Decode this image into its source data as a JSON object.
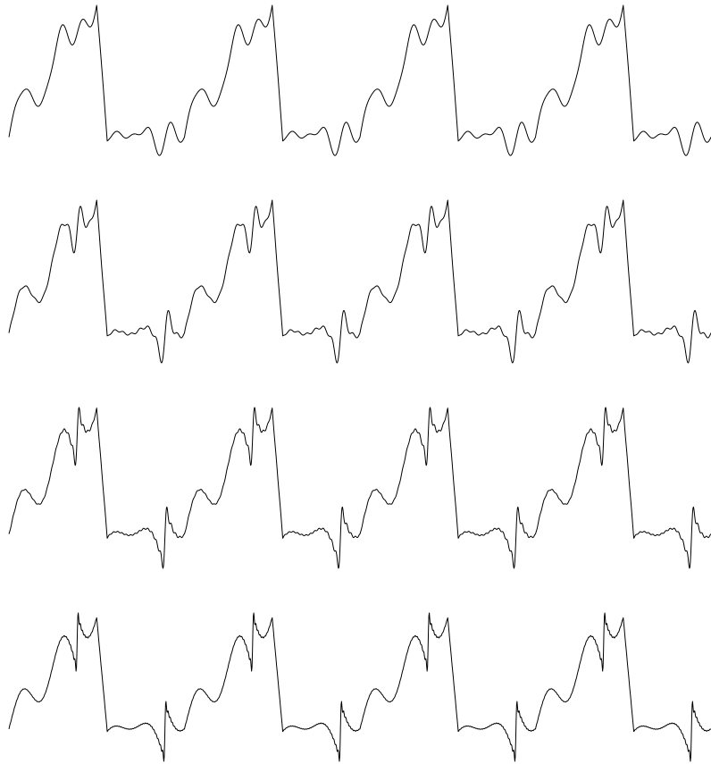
{
  "chart_data": {
    "type": "line",
    "title": "",
    "xlabel": "",
    "ylabel": "",
    "axes_visible": false,
    "grid": false,
    "legend": "none",
    "line_color": "#000000",
    "background": "#ffffff",
    "periods_shown": 4,
    "period_segments": [
      {
        "shape": "sine-harmonic",
        "span": [
          0,
          0.5
        ]
      },
      {
        "shape": "steep-drop",
        "span": [
          0.5,
          0.56
        ]
      },
      {
        "shape": "sine-harmonic",
        "span": [
          0.56,
          1.0
        ]
      }
    ],
    "series": [
      {
        "harmonics": 10,
        "ylim": [
          -1,
          1
        ]
      },
      {
        "harmonics": 20,
        "ylim": [
          -1,
          1
        ]
      },
      {
        "harmonics": 40,
        "ylim": [
          -1,
          1
        ]
      },
      {
        "harmonics": 80,
        "ylim": [
          -1,
          1
        ]
      }
    ]
  }
}
